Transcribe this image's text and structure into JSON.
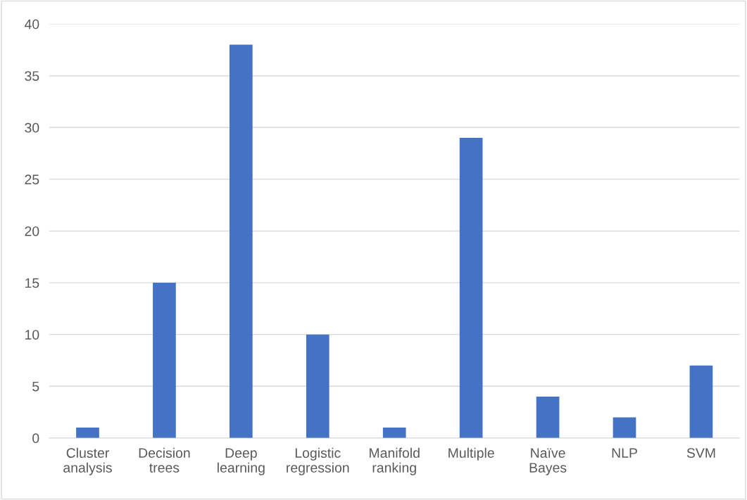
{
  "chart_data": {
    "type": "bar",
    "categories": [
      "Cluster analysis",
      "Decision trees",
      "Deep learning",
      "Logistic regression",
      "Manifold ranking",
      "Multiple",
      "Naïve Bayes",
      "NLP",
      "SVM"
    ],
    "values": [
      1,
      15,
      38,
      10,
      1,
      29,
      4,
      2,
      7
    ],
    "color": "#4472c4",
    "ylim": [
      0,
      40
    ],
    "yticks": [
      0,
      5,
      10,
      15,
      20,
      25,
      30,
      35,
      40
    ],
    "grid": "y",
    "legend": false
  }
}
